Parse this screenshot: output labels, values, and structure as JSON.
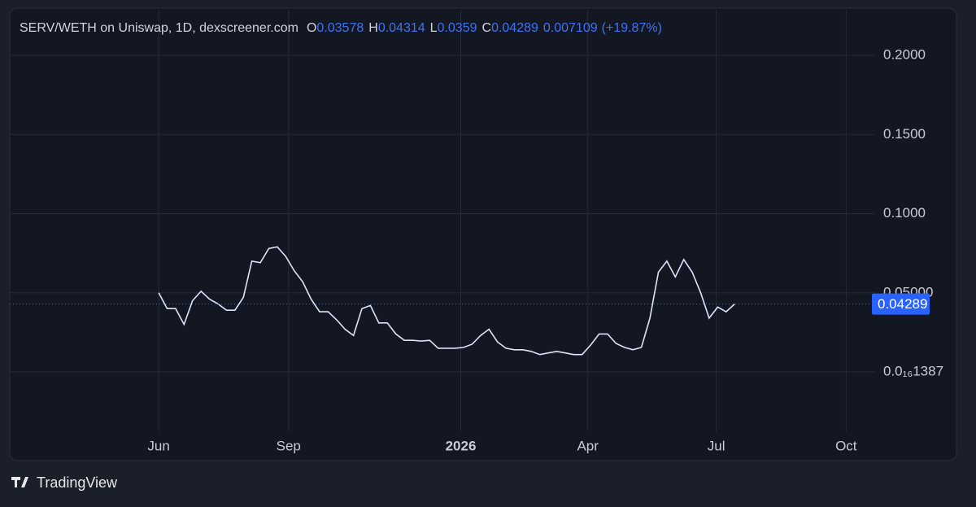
{
  "chart_data": {
    "type": "line",
    "title": "SERV/WETH on Uniswap, 1D, dexscreener.com",
    "ohlc_labels": [
      "O",
      "H",
      "L",
      "C"
    ],
    "ohlc_values": [
      0.03578,
      0.04314,
      0.0359,
      0.04289
    ],
    "change": 0.007109,
    "change_label": "(+19.87%)",
    "last_price": 0.04289,
    "source": "TradingView",
    "xlim": [
      -105.5,
      507
    ],
    "xticks": [
      {
        "value": 0,
        "label": "Jun"
      },
      {
        "value": 92,
        "label": "Sep"
      },
      {
        "value": 214,
        "label": "2026"
      },
      {
        "value": 304,
        "label": "Apr"
      },
      {
        "value": 395,
        "label": "Jul"
      },
      {
        "value": 487,
        "label": "Oct"
      }
    ],
    "ylim": [
      -0.0375,
      0.2288
    ],
    "yticks": [
      {
        "value": 0.2,
        "label": "0.2000"
      },
      {
        "value": 0.15,
        "label": "0.1500"
      },
      {
        "value": 0.1,
        "label": "0.1000"
      },
      {
        "value": 0.05,
        "label": "0.05000"
      },
      {
        "value": 1.387e-17,
        "label": "0.0₁₆1387"
      }
    ],
    "grid": true,
    "series": [
      {
        "name": "SERV/WETH",
        "color": "#dde4fb",
        "x": [
          0,
          6,
          12,
          18,
          24,
          30,
          36,
          42,
          48,
          54,
          60,
          66,
          72,
          78,
          84,
          90,
          96,
          102,
          108,
          114,
          120,
          126,
          132,
          138,
          144,
          150,
          156,
          162,
          168,
          174,
          180,
          186,
          192,
          198,
          204,
          210,
          216,
          222,
          228,
          234,
          240,
          246,
          252,
          258,
          264,
          270,
          276,
          282,
          288,
          294,
          300,
          306,
          312,
          318,
          324,
          330,
          336,
          342,
          348,
          354,
          360,
          366,
          372,
          378,
          384,
          390,
          396,
          402,
          408
        ],
        "values": [
          0.05,
          0.04,
          0.04,
          0.03,
          0.045,
          0.051,
          0.046,
          0.043,
          0.039,
          0.039,
          0.047,
          0.07,
          0.069,
          0.078,
          0.079,
          0.073,
          0.064,
          0.057,
          0.046,
          0.038,
          0.038,
          0.033,
          0.027,
          0.023,
          0.04,
          0.042,
          0.031,
          0.031,
          0.024,
          0.02,
          0.02,
          0.0195,
          0.02,
          0.015,
          0.015,
          0.015,
          0.0155,
          0.0175,
          0.023,
          0.027,
          0.019,
          0.015,
          0.014,
          0.014,
          0.013,
          0.011,
          0.012,
          0.013,
          0.012,
          0.011,
          0.011,
          0.017,
          0.024,
          0.024,
          0.018,
          0.0155,
          0.014,
          0.0155,
          0.034,
          0.063,
          0.07,
          0.06,
          0.071,
          0.063,
          0.05,
          0.034,
          0.041,
          0.038,
          0.04289
        ]
      }
    ]
  }
}
